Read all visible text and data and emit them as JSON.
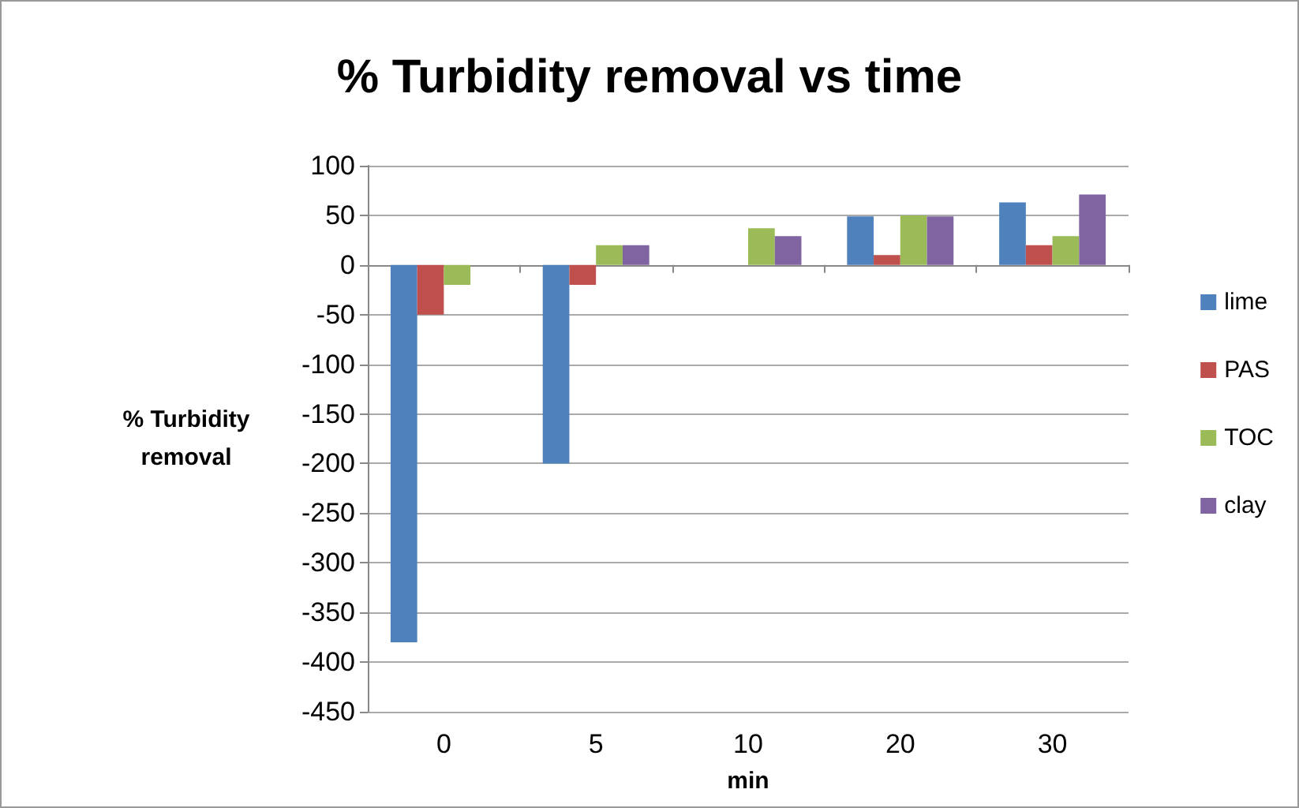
{
  "chart_data": {
    "type": "bar",
    "title": "% Turbidity removal vs time",
    "xlabel": "min",
    "ylabel": "% Turbidity\nremoval",
    "categories": [
      "0",
      "5",
      "10",
      "20",
      "30"
    ],
    "series": [
      {
        "name": "lime",
        "color": "#4f81bd",
        "values": [
          -380,
          -200,
          0,
          49,
          63
        ]
      },
      {
        "name": "PAS",
        "color": "#c0504d",
        "values": [
          -50,
          -20,
          0,
          10,
          20
        ]
      },
      {
        "name": "TOC",
        "color": "#9bbb59",
        "values": [
          -20,
          20,
          37,
          50,
          29
        ]
      },
      {
        "name": "clay",
        "color": "#8064a2",
        "values": [
          0,
          20,
          29,
          49,
          71
        ]
      }
    ],
    "ylim": [
      -450,
      100
    ],
    "yticks": [
      -450,
      -400,
      -350,
      -300,
      -250,
      -200,
      -150,
      -100,
      -50,
      0,
      50,
      100
    ],
    "grid": "y",
    "legend": "right"
  }
}
